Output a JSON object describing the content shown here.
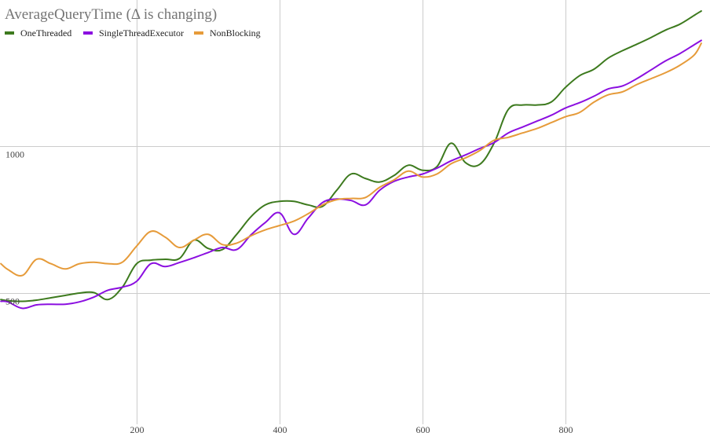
{
  "chart_data": {
    "type": "line",
    "title": "AverageQueryTime (Δ is changing)",
    "xlabel": "",
    "ylabel": "",
    "xlim": [
      10,
      990
    ],
    "ylim": [
      150,
      1520
    ],
    "x_ticks": [
      200,
      400,
      600,
      800
    ],
    "y_ticks": [
      500,
      1000
    ],
    "grid": true,
    "legend_position": "top-left",
    "series": [
      {
        "name": "OneThreaded",
        "color": "#3d7a1e",
        "x": [
          10,
          20,
          40,
          60,
          80,
          100,
          120,
          140,
          160,
          180,
          200,
          220,
          240,
          260,
          280,
          300,
          320,
          340,
          360,
          380,
          400,
          420,
          440,
          460,
          480,
          500,
          520,
          540,
          560,
          580,
          600,
          620,
          640,
          660,
          680,
          700,
          720,
          740,
          760,
          780,
          800,
          820,
          840,
          860,
          880,
          900,
          920,
          940,
          960,
          980,
          990
        ],
        "y": [
          478,
          474,
          472,
          476,
          484,
          492,
          500,
          502,
          478,
          520,
          600,
          612,
          615,
          618,
          680,
          652,
          648,
          700,
          760,
          800,
          812,
          812,
          800,
          795,
          850,
          905,
          890,
          878,
          900,
          935,
          918,
          930,
          1010,
          944,
          938,
          1010,
          1125,
          1140,
          1140,
          1150,
          1200,
          1240,
          1262,
          1300,
          1325,
          1347,
          1370,
          1395,
          1415,
          1445,
          1460
        ]
      },
      {
        "name": "SingleThreadExecutor",
        "color": "#8b0fe0",
        "x": [
          10,
          20,
          40,
          60,
          80,
          100,
          120,
          140,
          160,
          180,
          200,
          220,
          240,
          260,
          280,
          300,
          320,
          340,
          360,
          380,
          400,
          420,
          440,
          460,
          480,
          500,
          520,
          540,
          560,
          580,
          600,
          620,
          640,
          660,
          680,
          700,
          720,
          740,
          760,
          780,
          800,
          820,
          840,
          860,
          880,
          900,
          920,
          940,
          960,
          980,
          990
        ],
        "y": [
          472,
          470,
          448,
          460,
          462,
          462,
          470,
          486,
          510,
          520,
          540,
          600,
          590,
          604,
          620,
          638,
          655,
          648,
          698,
          740,
          773,
          700,
          755,
          808,
          820,
          815,
          800,
          850,
          880,
          895,
          905,
          925,
          950,
          970,
          992,
          1012,
          1045,
          1065,
          1085,
          1105,
          1130,
          1148,
          1170,
          1195,
          1205,
          1230,
          1260,
          1290,
          1315,
          1345,
          1360
        ]
      },
      {
        "name": "NonBlocking",
        "color": "#e69b3a",
        "x": [
          10,
          20,
          40,
          60,
          80,
          100,
          120,
          140,
          160,
          180,
          200,
          220,
          240,
          260,
          280,
          300,
          320,
          340,
          360,
          380,
          400,
          420,
          440,
          460,
          480,
          500,
          520,
          540,
          560,
          580,
          600,
          620,
          640,
          660,
          680,
          700,
          720,
          740,
          760,
          780,
          800,
          820,
          840,
          860,
          880,
          900,
          920,
          940,
          960,
          980,
          990
        ],
        "y": [
          600,
          580,
          560,
          615,
          600,
          582,
          600,
          605,
          600,
          605,
          660,
          710,
          690,
          655,
          680,
          700,
          665,
          670,
          695,
          715,
          730,
          745,
          770,
          800,
          818,
          822,
          825,
          860,
          885,
          915,
          895,
          905,
          940,
          960,
          985,
          1020,
          1030,
          1045,
          1060,
          1080,
          1100,
          1115,
          1150,
          1175,
          1185,
          1210,
          1230,
          1250,
          1275,
          1310,
          1350
        ]
      }
    ]
  }
}
